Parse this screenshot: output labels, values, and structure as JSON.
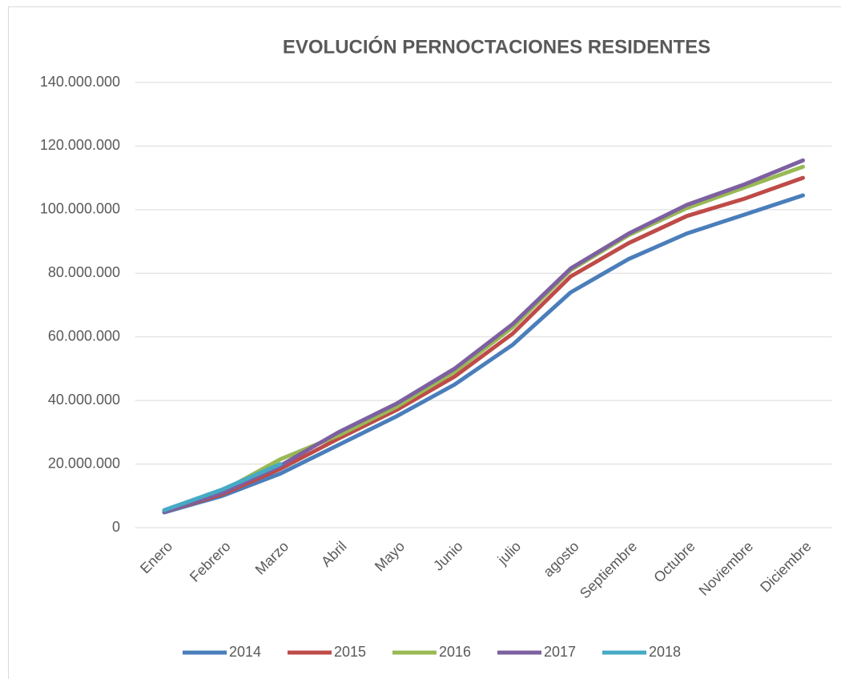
{
  "chart_data": {
    "type": "line",
    "title": "EVOLUCIÓN PERNOCTACIONES RESIDENTES",
    "categories": [
      "Enero",
      "Febrero",
      "Marzo",
      "Abril",
      "Mayo",
      "Junio",
      "julio",
      "agosto",
      "Septiembre",
      "Octubre",
      "Noviembre",
      "Diciembre"
    ],
    "series": [
      {
        "name": "2014",
        "color": "#4a7ebb",
        "values": [
          4800000,
          10000000,
          17000000,
          26000000,
          35000000,
          45000000,
          57500000,
          74000000,
          84500000,
          92500000,
          98500000,
          104500000
        ]
      },
      {
        "name": "2015",
        "color": "#be4b48",
        "values": [
          5000000,
          10500000,
          18500000,
          28000000,
          37000000,
          47500000,
          61000000,
          79000000,
          89500000,
          98000000,
          103500000,
          110000000
        ]
      },
      {
        "name": "2016",
        "color": "#98b954",
        "values": [
          5200000,
          11500000,
          21500000,
          29000000,
          38000000,
          49000000,
          63000000,
          81000000,
          92000000,
          100500000,
          107000000,
          113500000
        ]
      },
      {
        "name": "2017",
        "color": "#7d60a0",
        "values": [
          5000000,
          11000000,
          19500000,
          30000000,
          39000000,
          50000000,
          64000000,
          81500000,
          92500000,
          101500000,
          108000000,
          115500000
        ]
      },
      {
        "name": "2018",
        "color": "#46aac5",
        "values": [
          5500000,
          12000000,
          20000000,
          null,
          null,
          null,
          null,
          null,
          null,
          null,
          null,
          null
        ]
      }
    ],
    "ylim": [
      0,
      140000000
    ],
    "yticks": [
      0,
      {
        "value": 20000000,
        "label": "20.000.000"
      },
      {
        "value": 40000000,
        "label": "40.000.000"
      },
      {
        "value": 60000000,
        "label": "60.000.000"
      },
      {
        "value": 80000000,
        "label": "80.000.000"
      },
      {
        "value": 100000000,
        "label": "100.000.000"
      },
      {
        "value": 120000000,
        "label": "120.000.000"
      },
      {
        "value": 140000000,
        "label": "140.000.000"
      }
    ],
    "grid": true,
    "legend": "bottom"
  }
}
